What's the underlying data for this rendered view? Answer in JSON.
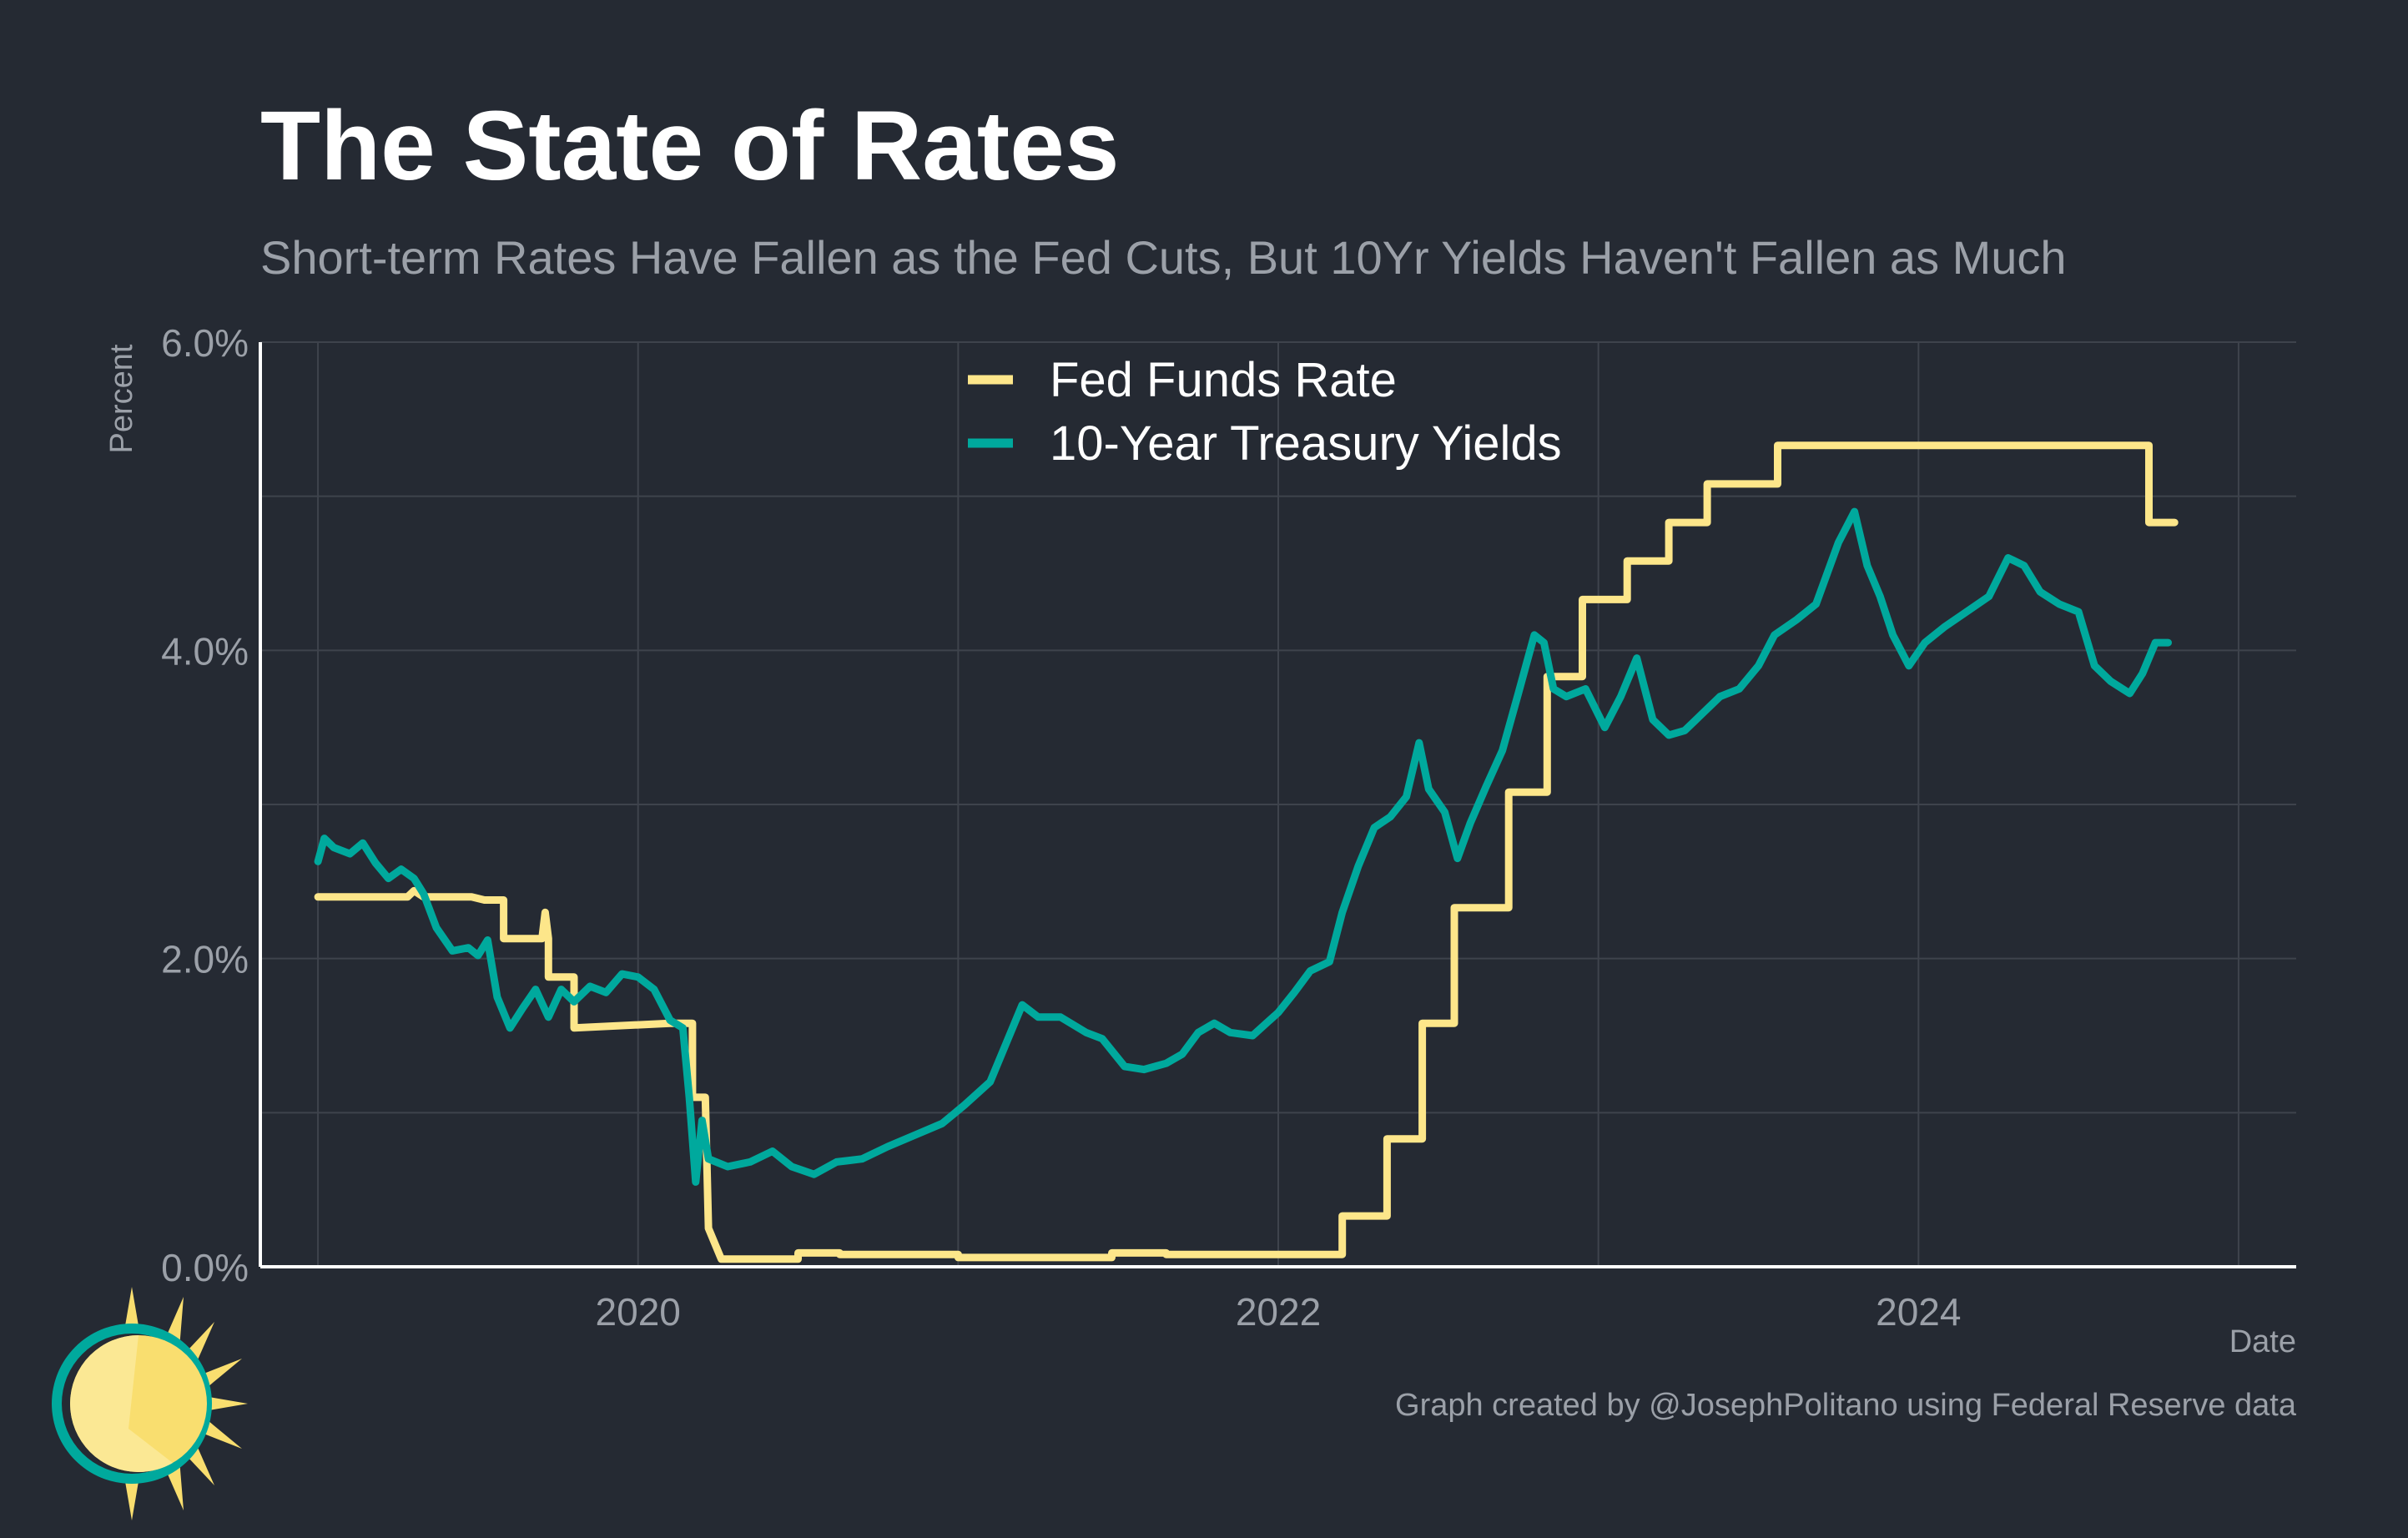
{
  "header": {
    "title": "The State of Rates",
    "subtitle": "Short-term Rates Have Fallen as the Fed Cuts, But 10Yr Yields Haven't Fallen as Much"
  },
  "caption": "Graph created by @JosephPolitano using Federal Reserve data",
  "colors": {
    "background": "#252a33",
    "grid": "#3e434c",
    "axis": "#ffffff",
    "text_muted": "#9ba0a8",
    "fed_funds": "#fde68a",
    "treasury": "#00a99d",
    "logo_sun": "#f9de6f",
    "logo_ring": "#00a99d"
  },
  "chart_data": {
    "type": "line",
    "title": "The State of Rates",
    "subtitle": "Short-term Rates Have Fallen as the Fed Cuts, But 10Yr Yields Haven't Fallen as Much",
    "xlabel": "Date",
    "ylabel": "Percent",
    "x_unit": "year",
    "xlim": [
      2018.82,
      2025.18
    ],
    "ylim": [
      0,
      6
    ],
    "x_ticks": [
      2020,
      2022,
      2024
    ],
    "x_tick_labels": [
      "2020",
      "2022",
      "2024"
    ],
    "y_ticks": [
      0,
      2,
      4,
      6
    ],
    "y_tick_labels": [
      "0.0%",
      "2.0%",
      "4.0%",
      "6.0%"
    ],
    "grid": true,
    "legend": {
      "position": "top-center"
    },
    "series": [
      {
        "name": "Fed Funds Rate",
        "color": "#fde68a",
        "points": [
          [
            2019.0,
            2.4
          ],
          [
            2019.28,
            2.4
          ],
          [
            2019.3,
            2.44
          ],
          [
            2019.33,
            2.4
          ],
          [
            2019.48,
            2.4
          ],
          [
            2019.52,
            2.38
          ],
          [
            2019.58,
            2.38
          ],
          [
            2019.58,
            2.13
          ],
          [
            2019.7,
            2.13
          ],
          [
            2019.71,
            2.3
          ],
          [
            2019.72,
            2.13
          ],
          [
            2019.72,
            1.88
          ],
          [
            2019.8,
            1.88
          ],
          [
            2019.8,
            1.55
          ],
          [
            2020.1,
            1.58
          ],
          [
            2020.17,
            1.58
          ],
          [
            2020.17,
            1.1
          ],
          [
            2020.21,
            1.1
          ],
          [
            2020.22,
            0.25
          ],
          [
            2020.26,
            0.05
          ],
          [
            2020.5,
            0.05
          ],
          [
            2020.5,
            0.09
          ],
          [
            2020.63,
            0.09
          ],
          [
            2020.63,
            0.08
          ],
          [
            2021.0,
            0.08
          ],
          [
            2021.0,
            0.06
          ],
          [
            2021.48,
            0.06
          ],
          [
            2021.48,
            0.09
          ],
          [
            2021.65,
            0.09
          ],
          [
            2021.65,
            0.08
          ],
          [
            2022.2,
            0.08
          ],
          [
            2022.2,
            0.33
          ],
          [
            2022.34,
            0.33
          ],
          [
            2022.34,
            0.83
          ],
          [
            2022.45,
            0.83
          ],
          [
            2022.45,
            1.58
          ],
          [
            2022.55,
            1.58
          ],
          [
            2022.55,
            2.33
          ],
          [
            2022.72,
            2.33
          ],
          [
            2022.72,
            3.08
          ],
          [
            2022.84,
            3.08
          ],
          [
            2022.84,
            3.83
          ],
          [
            2022.95,
            3.83
          ],
          [
            2022.95,
            4.33
          ],
          [
            2023.09,
            4.33
          ],
          [
            2023.09,
            4.58
          ],
          [
            2023.22,
            4.58
          ],
          [
            2023.22,
            4.83
          ],
          [
            2023.34,
            4.83
          ],
          [
            2023.34,
            5.08
          ],
          [
            2023.56,
            5.08
          ],
          [
            2023.56,
            5.33
          ],
          [
            2024.72,
            5.33
          ],
          [
            2024.72,
            4.83
          ],
          [
            2024.8,
            4.83
          ]
        ]
      },
      {
        "name": "10-Year Treasury Yields",
        "color": "#00a99d",
        "points": [
          [
            2019.0,
            2.63
          ],
          [
            2019.02,
            2.78
          ],
          [
            2019.05,
            2.72
          ],
          [
            2019.1,
            2.68
          ],
          [
            2019.14,
            2.75
          ],
          [
            2019.18,
            2.62
          ],
          [
            2019.22,
            2.52
          ],
          [
            2019.26,
            2.58
          ],
          [
            2019.3,
            2.52
          ],
          [
            2019.33,
            2.42
          ],
          [
            2019.37,
            2.2
          ],
          [
            2019.42,
            2.05
          ],
          [
            2019.47,
            2.07
          ],
          [
            2019.5,
            2.02
          ],
          [
            2019.53,
            2.12
          ],
          [
            2019.56,
            1.75
          ],
          [
            2019.6,
            1.55
          ],
          [
            2019.64,
            1.68
          ],
          [
            2019.68,
            1.8
          ],
          [
            2019.72,
            1.62
          ],
          [
            2019.76,
            1.8
          ],
          [
            2019.8,
            1.72
          ],
          [
            2019.85,
            1.82
          ],
          [
            2019.9,
            1.78
          ],
          [
            2019.95,
            1.9
          ],
          [
            2020.0,
            1.88
          ],
          [
            2020.05,
            1.8
          ],
          [
            2020.1,
            1.6
          ],
          [
            2020.14,
            1.55
          ],
          [
            2020.16,
            1.1
          ],
          [
            2020.18,
            0.55
          ],
          [
            2020.2,
            0.95
          ],
          [
            2020.22,
            0.7
          ],
          [
            2020.28,
            0.65
          ],
          [
            2020.35,
            0.68
          ],
          [
            2020.42,
            0.75
          ],
          [
            2020.48,
            0.65
          ],
          [
            2020.55,
            0.6
          ],
          [
            2020.62,
            0.68
          ],
          [
            2020.7,
            0.7
          ],
          [
            2020.78,
            0.78
          ],
          [
            2020.86,
            0.85
          ],
          [
            2020.95,
            0.93
          ],
          [
            2021.02,
            1.05
          ],
          [
            2021.1,
            1.2
          ],
          [
            2021.15,
            1.45
          ],
          [
            2021.2,
            1.7
          ],
          [
            2021.25,
            1.62
          ],
          [
            2021.32,
            1.62
          ],
          [
            2021.4,
            1.52
          ],
          [
            2021.45,
            1.48
          ],
          [
            2021.52,
            1.3
          ],
          [
            2021.58,
            1.28
          ],
          [
            2021.65,
            1.32
          ],
          [
            2021.7,
            1.38
          ],
          [
            2021.75,
            1.52
          ],
          [
            2021.8,
            1.58
          ],
          [
            2021.85,
            1.52
          ],
          [
            2021.92,
            1.5
          ],
          [
            2022.0,
            1.65
          ],
          [
            2022.05,
            1.78
          ],
          [
            2022.1,
            1.92
          ],
          [
            2022.16,
            1.98
          ],
          [
            2022.2,
            2.3
          ],
          [
            2022.25,
            2.6
          ],
          [
            2022.3,
            2.85
          ],
          [
            2022.35,
            2.92
          ],
          [
            2022.4,
            3.05
          ],
          [
            2022.44,
            3.4
          ],
          [
            2022.47,
            3.1
          ],
          [
            2022.52,
            2.95
          ],
          [
            2022.56,
            2.65
          ],
          [
            2022.6,
            2.88
          ],
          [
            2022.65,
            3.12
          ],
          [
            2022.7,
            3.35
          ],
          [
            2022.75,
            3.72
          ],
          [
            2022.8,
            4.1
          ],
          [
            2022.83,
            4.05
          ],
          [
            2022.86,
            3.75
          ],
          [
            2022.9,
            3.7
          ],
          [
            2022.96,
            3.75
          ],
          [
            2023.02,
            3.5
          ],
          [
            2023.07,
            3.7
          ],
          [
            2023.12,
            3.95
          ],
          [
            2023.17,
            3.55
          ],
          [
            2023.22,
            3.45
          ],
          [
            2023.27,
            3.48
          ],
          [
            2023.32,
            3.58
          ],
          [
            2023.38,
            3.7
          ],
          [
            2023.44,
            3.75
          ],
          [
            2023.5,
            3.9
          ],
          [
            2023.55,
            4.1
          ],
          [
            2023.62,
            4.2
          ],
          [
            2023.68,
            4.3
          ],
          [
            2023.75,
            4.7
          ],
          [
            2023.8,
            4.9
          ],
          [
            2023.84,
            4.55
          ],
          [
            2023.88,
            4.35
          ],
          [
            2023.92,
            4.1
          ],
          [
            2023.97,
            3.9
          ],
          [
            2024.02,
            4.05
          ],
          [
            2024.08,
            4.15
          ],
          [
            2024.15,
            4.25
          ],
          [
            2024.22,
            4.35
          ],
          [
            2024.28,
            4.6
          ],
          [
            2024.33,
            4.55
          ],
          [
            2024.38,
            4.38
          ],
          [
            2024.44,
            4.3
          ],
          [
            2024.5,
            4.25
          ],
          [
            2024.55,
            3.9
          ],
          [
            2024.6,
            3.8
          ],
          [
            2024.66,
            3.72
          ],
          [
            2024.7,
            3.85
          ],
          [
            2024.74,
            4.05
          ],
          [
            2024.78,
            4.05
          ]
        ]
      }
    ]
  }
}
